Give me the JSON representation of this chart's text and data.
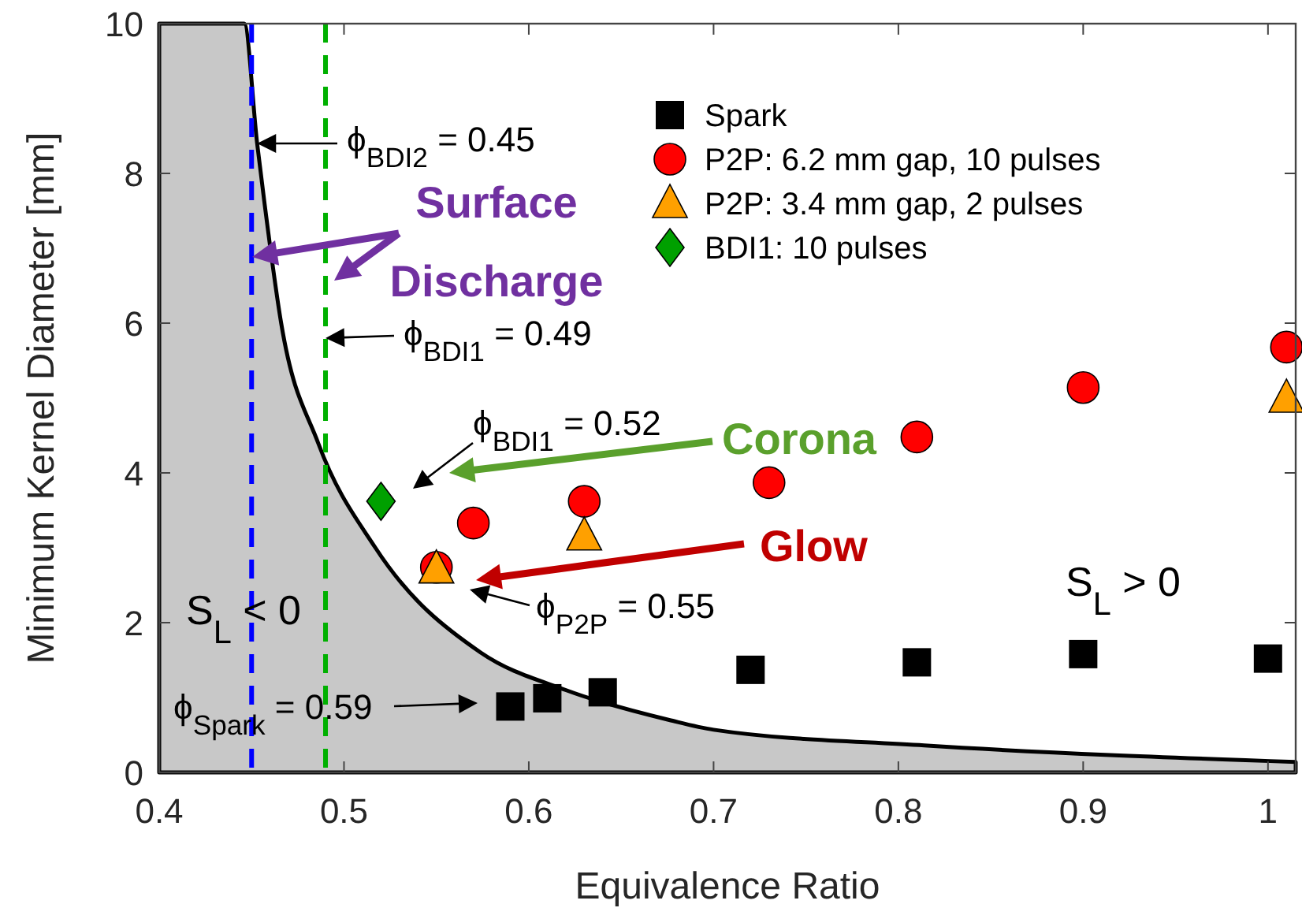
{
  "chart_data": {
    "type": "scatter",
    "xlabel": "Equivalence Ratio",
    "ylabel": "Minimum Kernel Diameter [mm]",
    "xlim": [
      0.4,
      1.015
    ],
    "xticks": [
      0.4,
      0.5,
      0.6,
      0.7,
      0.8,
      0.9,
      {
        "value": 1,
        "label": "1"
      }
    ],
    "ylim": [
      0,
      10
    ],
    "yticks": [
      0,
      2,
      4,
      6,
      8,
      10
    ],
    "grid": false,
    "legend": "top right",
    "series": [
      {
        "type": "area",
        "color": "#c8c8c8",
        "x": [
          0.4,
          0.446,
          0.453,
          0.457,
          0.466,
          0.486,
          0.517,
          0.574,
          0.62,
          0.676,
          0.7,
          0.814,
          1.015
        ],
        "values": [
          10,
          10,
          8.4,
          7.6,
          6.0,
          4.4,
          3.0,
          1.6,
          1.1,
          0.7,
          0.57,
          0.36,
          0.14
        ]
      },
      {
        "name": "Spark",
        "color": "#000000",
        "marker": "square",
        "x": [
          0.59,
          0.61,
          0.64,
          0.72,
          0.81,
          0.9,
          1.0
        ],
        "values": [
          0.88,
          0.99,
          1.07,
          1.37,
          1.47,
          1.58,
          1.52
        ]
      },
      {
        "name": "P2P: 6.2 mm gap, 10 pulses",
        "color": "#ff0000",
        "marker": "circle",
        "x": [
          0.55,
          0.57,
          0.63,
          0.73,
          0.81,
          0.9,
          1.01
        ],
        "values": [
          2.74,
          3.33,
          3.62,
          3.87,
          4.48,
          5.14,
          5.68
        ]
      },
      {
        "name": "P2P: 3.4 mm gap, 2 pulses",
        "color": "#ffa000",
        "marker": "triangle",
        "x": [
          0.55,
          0.63,
          1.01
        ],
        "values": [
          2.72,
          3.16,
          5.0
        ]
      },
      {
        "name": "BDI1: 10 pulses",
        "color": "#00a000",
        "marker": "diamond",
        "x": [
          0.52
        ],
        "values": [
          3.62
        ]
      }
    ],
    "ref_lines": [
      {
        "axis": "x",
        "value": 0.45,
        "color": "#0000ff",
        "line_style": "dashed"
      },
      {
        "axis": "x",
        "value": 0.49,
        "color": "#00b000",
        "line_style": "dashed"
      }
    ],
    "annotations": [
      {
        "text": "ϕ$_{BDI2}$ = 0.45",
        "x": 0.453,
        "y": 8.4
      },
      {
        "text": "ϕ$_{BDI1}$ = 0.49",
        "x": 0.49,
        "y": 5.8
      },
      "ϕ$_{BDI1}$ = 0.52",
      "ϕ$_{P2P}$ = 0.55",
      "ϕ$_{Spark}$ = 0.59",
      "Surface Discharge",
      "Corona",
      "Glow",
      "S$_{L}$ < 0",
      "S$_{L}$ > 0"
    ]
  }
}
